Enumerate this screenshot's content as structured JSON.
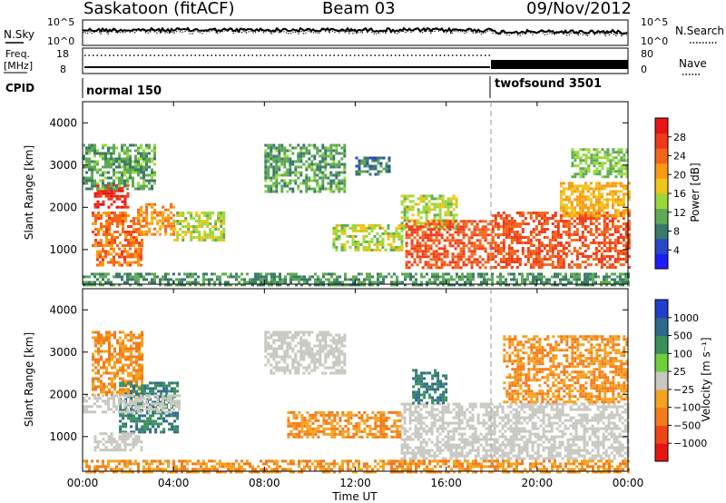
{
  "header": {
    "station": "Saskatoon (fitACF)",
    "beam": "Beam 03",
    "date": "09/Nov/2012"
  },
  "top_panels": {
    "nsky_label": "N.Sky",
    "nsky_ticks": [
      "10^5",
      "10^0"
    ],
    "nsearch_label": "N.Search",
    "nsearch_ticks": [
      "10^5",
      "10^0"
    ],
    "freq_label": "Freq.",
    "freq_unit": "[MHz]",
    "freq_ticks": [
      "18",
      "8"
    ],
    "nave_label": "Nave",
    "nave_ticks": [
      "80",
      "0"
    ],
    "cpid_label": "CPID",
    "cpid_segments": [
      {
        "name": "normal 150",
        "start_hour": 0,
        "end_hour": 18.1
      },
      {
        "name": "twofsound 3501",
        "start_hour": 18.1,
        "end_hour": 24
      }
    ]
  },
  "chart_data": [
    {
      "type": "heatmap",
      "name": "power",
      "xlabel": "",
      "ylabel": "Slant Range [km]",
      "xlim": [
        0,
        24
      ],
      "ylim": [
        180,
        4500
      ],
      "yticks": [
        "1000",
        "2000",
        "3000",
        "4000"
      ],
      "colorbar": {
        "label": "Power [dB]",
        "ticks": [
          "4",
          "8",
          "12",
          "16",
          "20",
          "24",
          "28"
        ],
        "range": [
          0,
          30
        ],
        "colors": [
          "#1c1cff",
          "#2a46c8",
          "#3a7a68",
          "#5faa55",
          "#9ad83a",
          "#f2c418",
          "#fb9a12",
          "#f6661a",
          "#ef3a1a",
          "#e81414"
        ]
      },
      "patches": [
        {
          "t": [
            0.5,
            2.0
          ],
          "r": [
            2000,
            2550
          ],
          "v": 27
        },
        {
          "t": [
            0.4,
            2.6
          ],
          "r": [
            1100,
            1900
          ],
          "v": 22
        },
        {
          "t": [
            0.6,
            2.6
          ],
          "r": [
            650,
            1050
          ],
          "v": 22
        },
        {
          "t": [
            2.4,
            4.0
          ],
          "r": [
            1350,
            2100
          ],
          "v": 20
        },
        {
          "t": [
            4.0,
            6.2
          ],
          "r": [
            1200,
            1900
          ],
          "v": 14
        },
        {
          "t": [
            0.0,
            3.2
          ],
          "r": [
            2450,
            3500
          ],
          "v": 10
        },
        {
          "t": [
            8.0,
            11.5
          ],
          "r": [
            2400,
            3500
          ],
          "v": 10
        },
        {
          "t": [
            12.0,
            13.5
          ],
          "r": [
            2800,
            3200
          ],
          "v": 8
        },
        {
          "t": [
            11.0,
            14.0
          ],
          "r": [
            1000,
            1600
          ],
          "v": 14
        },
        {
          "t": [
            14.0,
            16.5
          ],
          "r": [
            1500,
            2300
          ],
          "v": 14
        },
        {
          "t": [
            14.2,
            18.0
          ],
          "r": [
            600,
            1700
          ],
          "v": 24
        },
        {
          "t": [
            18.0,
            24.0
          ],
          "r": [
            600,
            1900
          ],
          "v": 24
        },
        {
          "t": [
            21.0,
            24.0
          ],
          "r": [
            1800,
            2600
          ],
          "v": 18
        },
        {
          "t": [
            21.5,
            24.0
          ],
          "r": [
            2700,
            3400
          ],
          "v": 12
        },
        {
          "t": [
            0.0,
            24.0
          ],
          "r": [
            180,
            450
          ],
          "v": 9
        }
      ]
    },
    {
      "type": "heatmap",
      "name": "velocity",
      "xlabel": "Time UT",
      "ylabel": "Slant Range [km]",
      "xlim": [
        0,
        24
      ],
      "ylim": [
        180,
        4500
      ],
      "xticks": [
        "00:00",
        "04:00",
        "08:00",
        "12:00",
        "16:00",
        "20:00",
        "00:00"
      ],
      "yticks": [
        "1000",
        "2000",
        "3000",
        "4000"
      ],
      "colorbar": {
        "label": "Velocity [m s⁻¹]",
        "ticks": [
          "1000",
          "500",
          "100",
          "25",
          "−25",
          "−100",
          "−500",
          "−1000"
        ],
        "colors": [
          "#1f3fcc",
          "#2e6a8c",
          "#3a8f5a",
          "#6fcf3c",
          "#c8c8c0",
          "#f5a31e",
          "#f47a1a",
          "#ef4516",
          "#e81414"
        ]
      },
      "patches": [
        {
          "t": [
            0.4,
            2.6
          ],
          "r": [
            2000,
            3500
          ],
          "v": -100
        },
        {
          "t": [
            1.6,
            4.2
          ],
          "r": [
            1100,
            2300
          ],
          "v": 100
        },
        {
          "t": [
            0.0,
            4.2
          ],
          "r": [
            1600,
            2000
          ],
          "v": 0
        },
        {
          "t": [
            0.5,
            2.6
          ],
          "r": [
            650,
            1100
          ],
          "v": 0
        },
        {
          "t": [
            8.0,
            11.5
          ],
          "r": [
            2500,
            3500
          ],
          "v": 0
        },
        {
          "t": [
            9.0,
            14.0
          ],
          "r": [
            1000,
            1600
          ],
          "v": -100
        },
        {
          "t": [
            14.0,
            24.0
          ],
          "r": [
            500,
            1800
          ],
          "v": 0
        },
        {
          "t": [
            14.5,
            16.0
          ],
          "r": [
            1800,
            2600
          ],
          "v": 100
        },
        {
          "t": [
            18.5,
            24.0
          ],
          "r": [
            1800,
            3400
          ],
          "v": -100
        },
        {
          "t": [
            0.0,
            24.0
          ],
          "r": [
            180,
            450
          ],
          "v": -100
        }
      ]
    }
  ],
  "xaxis": {
    "ticks": [
      "00:00",
      "04:00",
      "08:00",
      "12:00",
      "16:00",
      "20:00",
      "00:00"
    ],
    "label": "Time UT"
  }
}
